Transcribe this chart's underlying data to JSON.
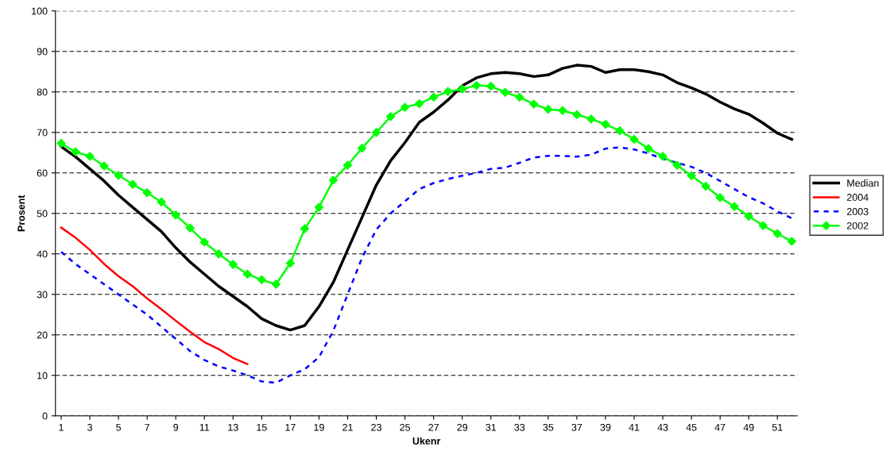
{
  "chart_data": {
    "type": "line",
    "xlabel": "Ukenr",
    "ylabel": "Prosent",
    "categories": [
      "1",
      null,
      "3",
      null,
      "5",
      null,
      "7",
      null,
      "9",
      null,
      "11",
      null,
      "13",
      null,
      "15",
      null,
      "17",
      null,
      "19",
      null,
      "21",
      null,
      "23",
      null,
      "25",
      null,
      "27",
      null,
      "29",
      null,
      "31",
      null,
      "33",
      null,
      "35",
      null,
      "37",
      null,
      "39",
      null,
      "41",
      null,
      "43",
      null,
      "45",
      null,
      "47",
      null,
      "49",
      null,
      "51",
      null
    ],
    "ylim": [
      0,
      100
    ],
    "yticks": [
      0,
      10,
      20,
      30,
      40,
      50,
      60,
      70,
      80,
      90,
      100
    ],
    "grid": "y",
    "legend": "right",
    "series": [
      {
        "name": "Median",
        "color": "#000000",
        "marker": "none",
        "line_style": "solid",
        "values": [
          66.5,
          64,
          61,
          58,
          54.5,
          51.5,
          48.5,
          45.5,
          41.5,
          38,
          35,
          32,
          29.5,
          27,
          24,
          22.3,
          21.2,
          22.3,
          27,
          33,
          41,
          49,
          57,
          63,
          67.5,
          72.5,
          75,
          78,
          81.5,
          83.5,
          84.5,
          84.8,
          84.5,
          83.8,
          84.2,
          85.8,
          86.6,
          86.3,
          84.8,
          85.5,
          85.5,
          85,
          84.2,
          82.3,
          81,
          79.5,
          77.5,
          75.8,
          74.5,
          72.3,
          69.8,
          68.3
        ]
      },
      {
        "name": "2004",
        "color": "#ff0000",
        "marker": "none",
        "line_style": "solid",
        "values": [
          46.5,
          44,
          41,
          37.5,
          34.5,
          32,
          29,
          26.3,
          23.5,
          20.8,
          18.2,
          16.5,
          14.3,
          12.8,
          null,
          null,
          null,
          null,
          null,
          null,
          null,
          null,
          null,
          null,
          null,
          null,
          null,
          null,
          null,
          null,
          null,
          null,
          null,
          null,
          null,
          null,
          null,
          null,
          null,
          null,
          null,
          null,
          null,
          null,
          null,
          null,
          null,
          null,
          null,
          null,
          null,
          null
        ]
      },
      {
        "name": "2003",
        "color": "#0000ff",
        "marker": "none",
        "line_style": "dashed",
        "values": [
          40.5,
          37.5,
          35,
          32.5,
          30,
          27.5,
          25,
          22,
          19,
          16,
          13.8,
          12.2,
          11.2,
          10,
          8.5,
          8.2,
          10,
          11.5,
          14.5,
          21,
          30,
          39,
          46,
          50,
          53,
          56,
          57.5,
          58.5,
          59.3,
          60,
          61,
          61.3,
          62.5,
          63.8,
          64.2,
          64.2,
          64,
          64.5,
          66,
          66.3,
          65.8,
          64.8,
          63.5,
          62.5,
          61.5,
          60,
          58,
          56,
          54,
          52.5,
          50.5,
          48.8
        ]
      },
      {
        "name": "2002",
        "color": "#00ff00",
        "marker": "diamond",
        "line_style": "solid",
        "values": [
          67.3,
          65.2,
          64.1,
          61.7,
          59.4,
          57.2,
          55.1,
          52.8,
          49.6,
          46.4,
          42.9,
          40,
          37.4,
          35,
          33.6,
          32.5,
          37.7,
          46.2,
          51.5,
          58.2,
          61.9,
          66.1,
          70,
          73.9,
          76.2,
          77.1,
          78.7,
          80.1,
          80.7,
          81.6,
          81.4,
          79.9,
          78.7,
          77,
          75.7,
          75.4,
          74.4,
          73.3,
          72,
          70.4,
          68.3,
          66,
          64.1,
          61.9,
          59.3,
          56.7,
          53.9,
          51.7,
          49.3,
          47,
          45,
          43.1
        ]
      }
    ]
  }
}
